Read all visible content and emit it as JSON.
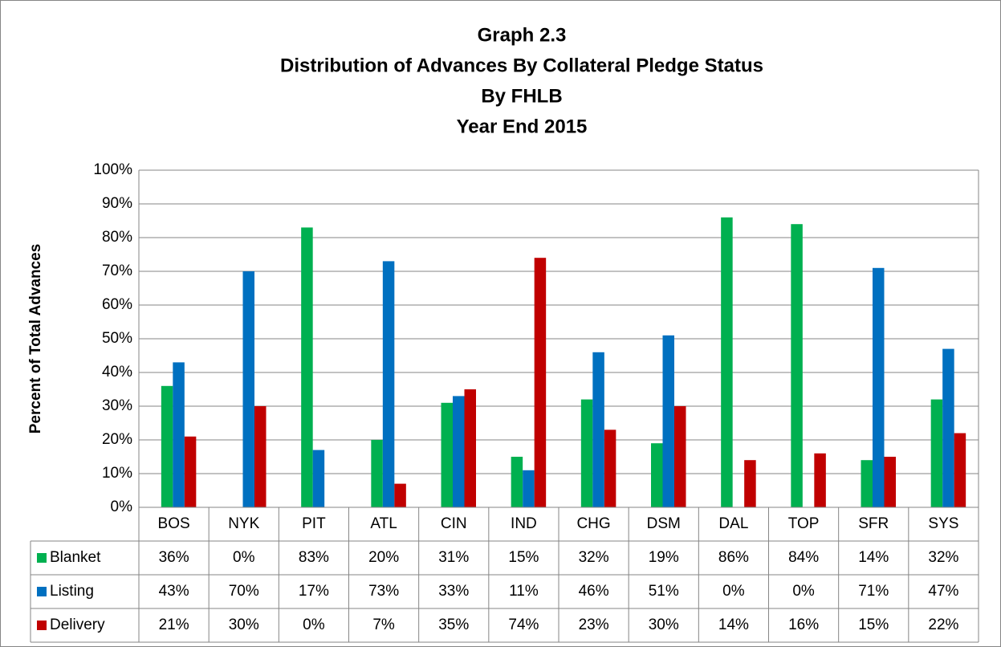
{
  "chart_data": {
    "type": "bar",
    "title": [
      "Graph 2.3",
      "Distribution of Advances By Collateral Pledge Status",
      "By FHLB",
      "Year End 2015"
    ],
    "y_label": "Percent of Total Advances",
    "categories": [
      "BOS",
      "NYK",
      "PIT",
      "ATL",
      "CIN",
      "IND",
      "CHG",
      "DSM",
      "DAL",
      "TOP",
      "SFR",
      "SYS"
    ],
    "series": [
      {
        "name": "Blanket",
        "color": "#00b050",
        "values": [
          36,
          0,
          83,
          20,
          31,
          15,
          32,
          19,
          86,
          84,
          14,
          32
        ],
        "value_labels": [
          "36%",
          "0%",
          "83%",
          "20%",
          "31%",
          "15%",
          "32%",
          "19%",
          "86%",
          "84%",
          "14%",
          "32%"
        ]
      },
      {
        "name": "Listing",
        "color": "#0070c0",
        "values": [
          43,
          70,
          17,
          73,
          33,
          11,
          46,
          51,
          0,
          0,
          71,
          47
        ],
        "value_labels": [
          "43%",
          "70%",
          "17%",
          "73%",
          "33%",
          "11%",
          "46%",
          "51%",
          "0%",
          "0%",
          "71%",
          "47%"
        ]
      },
      {
        "name": "Delivery",
        "color": "#c00000",
        "values": [
          21,
          30,
          0,
          7,
          35,
          74,
          23,
          30,
          14,
          16,
          15,
          22
        ],
        "value_labels": [
          "21%",
          "30%",
          "0%",
          "7%",
          "35%",
          "74%",
          "23%",
          "30%",
          "14%",
          "16%",
          "15%",
          "22%"
        ]
      }
    ],
    "ylim": [
      0,
      100
    ],
    "yticks": [
      {
        "value": 0,
        "label": "0%"
      },
      {
        "value": 10,
        "label": "10%"
      },
      {
        "value": 20,
        "label": "20%"
      },
      {
        "value": 30,
        "label": "30%"
      },
      {
        "value": 40,
        "label": "40%"
      },
      {
        "value": 50,
        "label": "50%"
      },
      {
        "value": 60,
        "label": "60%"
      },
      {
        "value": 70,
        "label": "70%"
      },
      {
        "value": 80,
        "label": "80%"
      },
      {
        "value": 90,
        "label": "90%"
      },
      {
        "value": 100,
        "label": "100%"
      }
    ],
    "grid": true
  }
}
